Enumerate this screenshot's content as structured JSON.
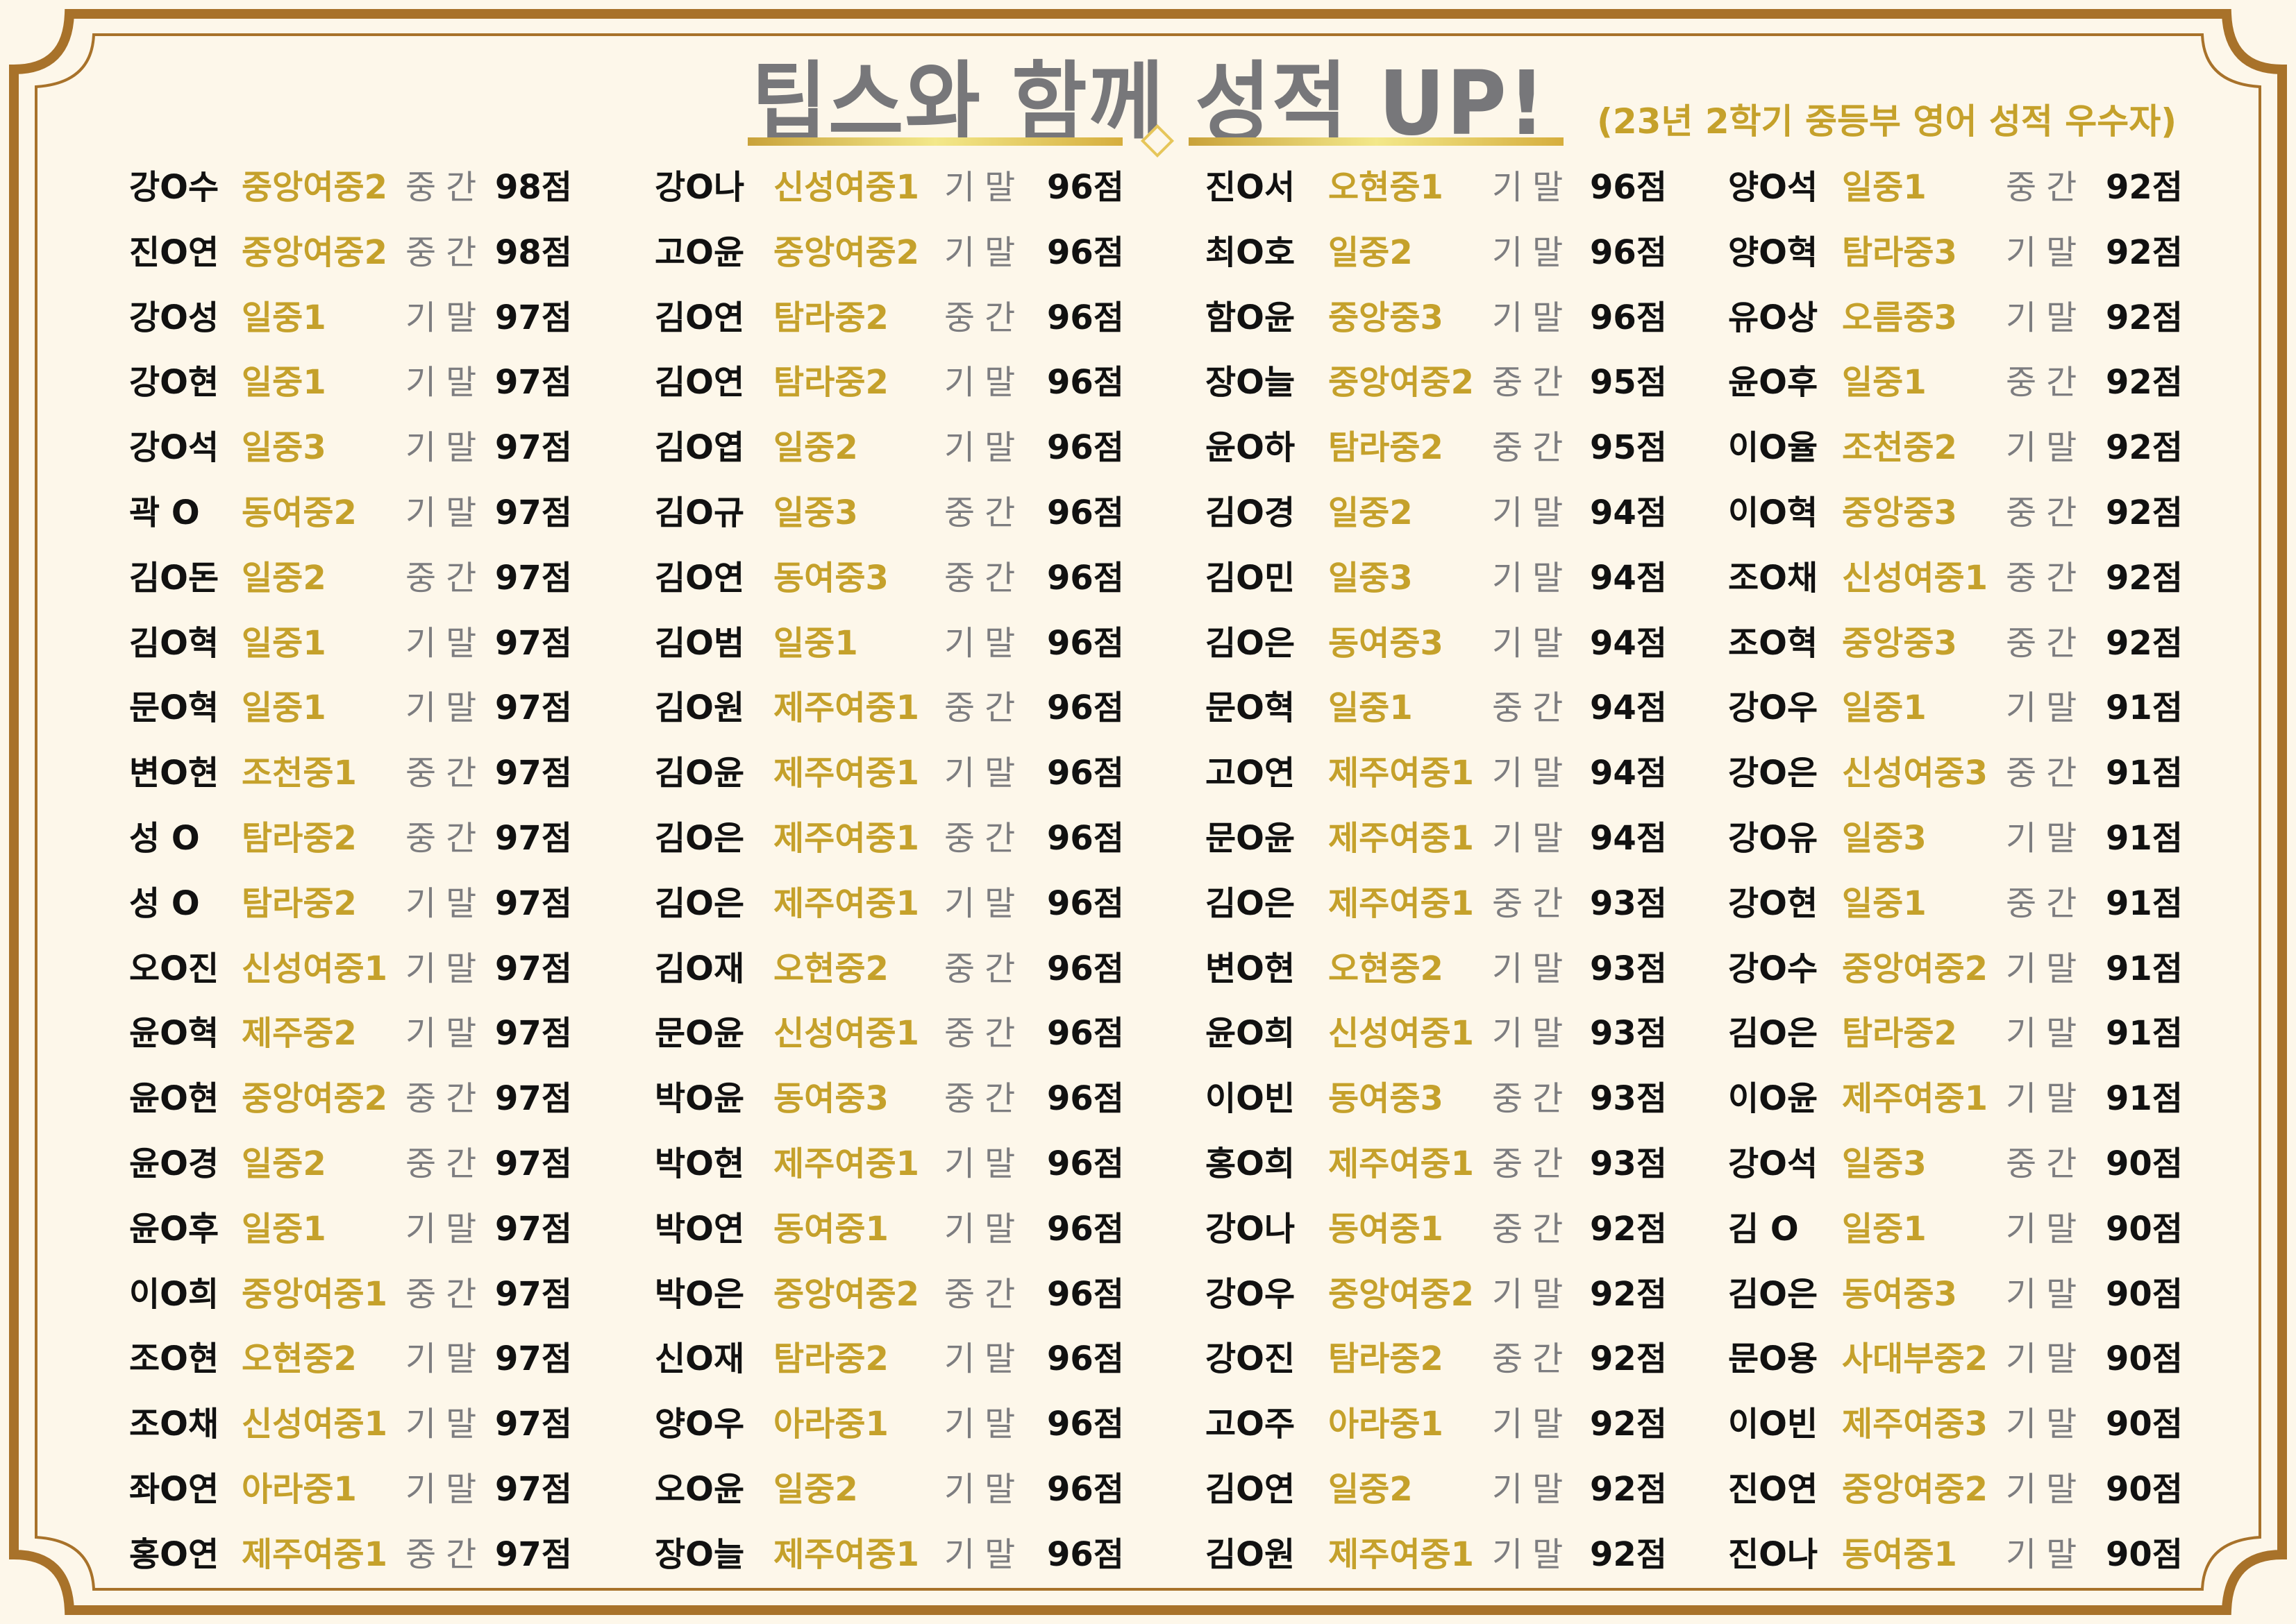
{
  "title": "팁스와 함께 성적 UP!",
  "subtitle": "(23년 2학기 중등부 영어 성적 우수자)",
  "colors": {
    "background": "#fdf7ea",
    "frame": "#a8722a",
    "school": "#c5a12b",
    "exam": "#7d7d80",
    "title": "#77777a"
  },
  "columns": [
    [
      [
        "강O수",
        "중앙여중2",
        "중간",
        "98점"
      ],
      [
        "진O연",
        "중앙여중2",
        "중간",
        "98점"
      ],
      [
        "강O성",
        "일중1",
        "기말",
        "97점"
      ],
      [
        "강O현",
        "일중1",
        "기말",
        "97점"
      ],
      [
        "강O석",
        "일중3",
        "기말",
        "97점"
      ],
      [
        "곽 O",
        "동여중2",
        "기말",
        "97점"
      ],
      [
        "김O돈",
        "일중2",
        "중간",
        "97점"
      ],
      [
        "김O혁",
        "일중1",
        "기말",
        "97점"
      ],
      [
        "문O혁",
        "일중1",
        "기말",
        "97점"
      ],
      [
        "변O현",
        "조천중1",
        "중간",
        "97점"
      ],
      [
        "성 O",
        "탐라중2",
        "중간",
        "97점"
      ],
      [
        "성 O",
        "탐라중2",
        "기말",
        "97점"
      ],
      [
        "오O진",
        "신성여중1",
        "기말",
        "97점"
      ],
      [
        "윤O혁",
        "제주중2",
        "기말",
        "97점"
      ],
      [
        "윤O현",
        "중앙여중2",
        "중간",
        "97점"
      ],
      [
        "윤O경",
        "일중2",
        "중간",
        "97점"
      ],
      [
        "윤O후",
        "일중1",
        "기말",
        "97점"
      ],
      [
        "이O희",
        "중앙여중1",
        "중간",
        "97점"
      ],
      [
        "조O현",
        "오현중2",
        "기말",
        "97점"
      ],
      [
        "조O채",
        "신성여중1",
        "기말",
        "97점"
      ],
      [
        "좌O연",
        "아라중1",
        "기말",
        "97점"
      ],
      [
        "홍O연",
        "제주여중1",
        "중간",
        "97점"
      ]
    ],
    [
      [
        "강O나",
        "신성여중1",
        "기말",
        "96점"
      ],
      [
        "고O윤",
        "중앙여중2",
        "기말",
        "96점"
      ],
      [
        "김O연",
        "탐라중2",
        "중간",
        "96점"
      ],
      [
        "김O연",
        "탐라중2",
        "기말",
        "96점"
      ],
      [
        "김O엽",
        "일중2",
        "기말",
        "96점"
      ],
      [
        "김O규",
        "일중3",
        "중간",
        "96점"
      ],
      [
        "김O연",
        "동여중3",
        "중간",
        "96점"
      ],
      [
        "김O범",
        "일중1",
        "기말",
        "96점"
      ],
      [
        "김O원",
        "제주여중1",
        "중간",
        "96점"
      ],
      [
        "김O윤",
        "제주여중1",
        "기말",
        "96점"
      ],
      [
        "김O은",
        "제주여중1",
        "중간",
        "96점"
      ],
      [
        "김O은",
        "제주여중1",
        "기말",
        "96점"
      ],
      [
        "김O재",
        "오현중2",
        "중간",
        "96점"
      ],
      [
        "문O윤",
        "신성여중1",
        "중간",
        "96점"
      ],
      [
        "박O윤",
        "동여중3",
        "중간",
        "96점"
      ],
      [
        "박O현",
        "제주여중1",
        "기말",
        "96점"
      ],
      [
        "박O연",
        "동여중1",
        "기말",
        "96점"
      ],
      [
        "박O은",
        "중앙여중2",
        "중간",
        "96점"
      ],
      [
        "신O재",
        "탐라중2",
        "기말",
        "96점"
      ],
      [
        "양O우",
        "아라중1",
        "기말",
        "96점"
      ],
      [
        "오O윤",
        "일중2",
        "기말",
        "96점"
      ],
      [
        "장O늘",
        "제주여중1",
        "기말",
        "96점"
      ]
    ],
    [
      [
        "진O서",
        "오현중1",
        "기말",
        "96점"
      ],
      [
        "최O호",
        "일중2",
        "기말",
        "96점"
      ],
      [
        "함O윤",
        "중앙중3",
        "기말",
        "96점"
      ],
      [
        "장O늘",
        "중앙여중2",
        "중간",
        "95점"
      ],
      [
        "윤O하",
        "탐라중2",
        "중간",
        "95점"
      ],
      [
        "김O경",
        "일중2",
        "기말",
        "94점"
      ],
      [
        "김O민",
        "일중3",
        "기말",
        "94점"
      ],
      [
        "김O은",
        "동여중3",
        "기말",
        "94점"
      ],
      [
        "문O혁",
        "일중1",
        "중간",
        "94점"
      ],
      [
        "고O연",
        "제주여중1",
        "기말",
        "94점"
      ],
      [
        "문O윤",
        "제주여중1",
        "기말",
        "94점"
      ],
      [
        "김O은",
        "제주여중1",
        "중간",
        "93점"
      ],
      [
        "변O현",
        "오현중2",
        "기말",
        "93점"
      ],
      [
        "윤O희",
        "신성여중1",
        "기말",
        "93점"
      ],
      [
        "이O빈",
        "동여중3",
        "중간",
        "93점"
      ],
      [
        "홍O희",
        "제주여중1",
        "중간",
        "93점"
      ],
      [
        "강O나",
        "동여중1",
        "중간",
        "92점"
      ],
      [
        "강O우",
        "중앙여중2",
        "기말",
        "92점"
      ],
      [
        "강O진",
        "탐라중2",
        "중간",
        "92점"
      ],
      [
        "고O주",
        "아라중1",
        "기말",
        "92점"
      ],
      [
        "김O연",
        "일중2",
        "기말",
        "92점"
      ],
      [
        "김O원",
        "제주여중1",
        "기말",
        "92점"
      ]
    ],
    [
      [
        "양O석",
        "일중1",
        "중간",
        "92점"
      ],
      [
        "양O혁",
        "탐라중3",
        "기말",
        "92점"
      ],
      [
        "유O상",
        "오름중3",
        "기말",
        "92점"
      ],
      [
        "윤O후",
        "일중1",
        "중간",
        "92점"
      ],
      [
        "이O율",
        "조천중2",
        "기말",
        "92점"
      ],
      [
        "이O혁",
        "중앙중3",
        "중간",
        "92점"
      ],
      [
        "조O채",
        "신성여중1",
        "중간",
        "92점"
      ],
      [
        "조O혁",
        "중앙중3",
        "중간",
        "92점"
      ],
      [
        "강O우",
        "일중1",
        "기말",
        "91점"
      ],
      [
        "강O은",
        "신성여중3",
        "중간",
        "91점"
      ],
      [
        "강O유",
        "일중3",
        "기말",
        "91점"
      ],
      [
        "강O현",
        "일중1",
        "중간",
        "91점"
      ],
      [
        "강O수",
        "중앙여중2",
        "기말",
        "91점"
      ],
      [
        "김O은",
        "탐라중2",
        "기말",
        "91점"
      ],
      [
        "이O윤",
        "제주여중1",
        "기말",
        "91점"
      ],
      [
        "강O석",
        "일중3",
        "중간",
        "90점"
      ],
      [
        "김 O",
        "일중1",
        "기말",
        "90점"
      ],
      [
        "김O은",
        "동여중3",
        "기말",
        "90점"
      ],
      [
        "문O용",
        "사대부중2",
        "기말",
        "90점"
      ],
      [
        "이O빈",
        "제주여중3",
        "기말",
        "90점"
      ],
      [
        "진O연",
        "중앙여중2",
        "기말",
        "90점"
      ],
      [
        "진O나",
        "동여중1",
        "기말",
        "90점"
      ]
    ]
  ]
}
